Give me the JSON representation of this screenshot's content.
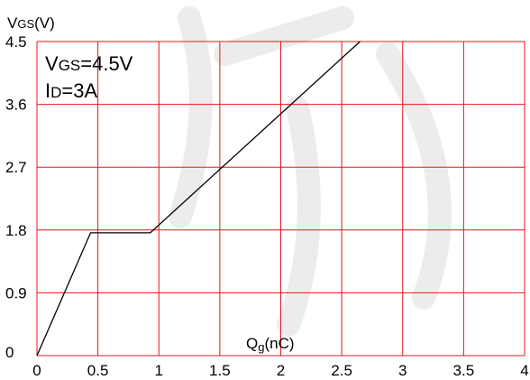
{
  "chart_data": {
    "type": "line",
    "title": "",
    "ylabel_main": "V",
    "ylabel_sub": "GS",
    "ylabel_unit": "(V)",
    "xlabel_main": "Q",
    "xlabel_sub": "g",
    "xlabel_unit": "(nC)",
    "xlim": [
      0,
      4
    ],
    "ylim": [
      0,
      4.5
    ],
    "x_ticks": [
      "0",
      "0.5",
      "1",
      "1.5",
      "2",
      "2.5",
      "3",
      "3.5",
      "4"
    ],
    "y_ticks": [
      "0",
      "0.9",
      "1.8",
      "2.7",
      "3.6",
      "4.5"
    ],
    "grid": true,
    "colors": {
      "grid": "#e8141c",
      "line": "#000000"
    },
    "annotations": {
      "line1_main": "V",
      "line1_sub": "GS",
      "line1_value": "=4.5V",
      "line2_main": "I",
      "line2_sub": "D",
      "line2_value": "=3A"
    },
    "series": [
      {
        "x": [
          0,
          0.44,
          0.93,
          2.65
        ],
        "y": [
          0,
          1.76,
          1.76,
          4.5
        ]
      }
    ]
  }
}
